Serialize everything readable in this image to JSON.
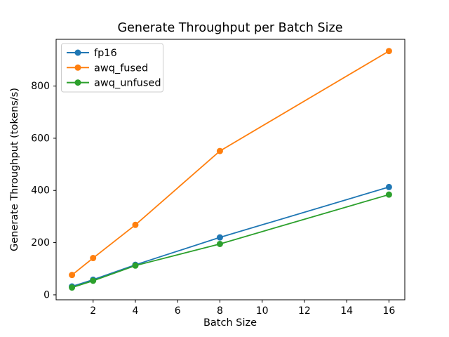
{
  "chart_data": {
    "type": "line",
    "title": "Generate Throughput per Batch Size",
    "xlabel": "Batch Size",
    "ylabel": "Generate Throughput (tokens/s)",
    "x": [
      1,
      2,
      4,
      8,
      16
    ],
    "series": [
      {
        "name": "fp16",
        "color": "#1f77b4",
        "values": [
          32,
          58,
          115,
          220,
          413
        ]
      },
      {
        "name": "awq_fused",
        "color": "#ff7f0e",
        "values": [
          76,
          141,
          268,
          551,
          934
        ]
      },
      {
        "name": "awq_unfused",
        "color": "#2ca02c",
        "values": [
          28,
          54,
          112,
          195,
          384
        ]
      }
    ],
    "xticks": [
      2,
      4,
      6,
      8,
      10,
      12,
      14,
      16
    ],
    "yticks": [
      0,
      200,
      400,
      600,
      800
    ],
    "xlim": [
      0.25,
      16.75
    ],
    "ylim": [
      -19,
      979
    ],
    "grid": false,
    "marker": "circle",
    "legend_position": "upper-left",
    "colors": {
      "spine": "#000000",
      "tick": "#000000",
      "legend_border": "#cccccc",
      "legend_background": "#ffffff",
      "figure_background": "#ffffff"
    }
  }
}
